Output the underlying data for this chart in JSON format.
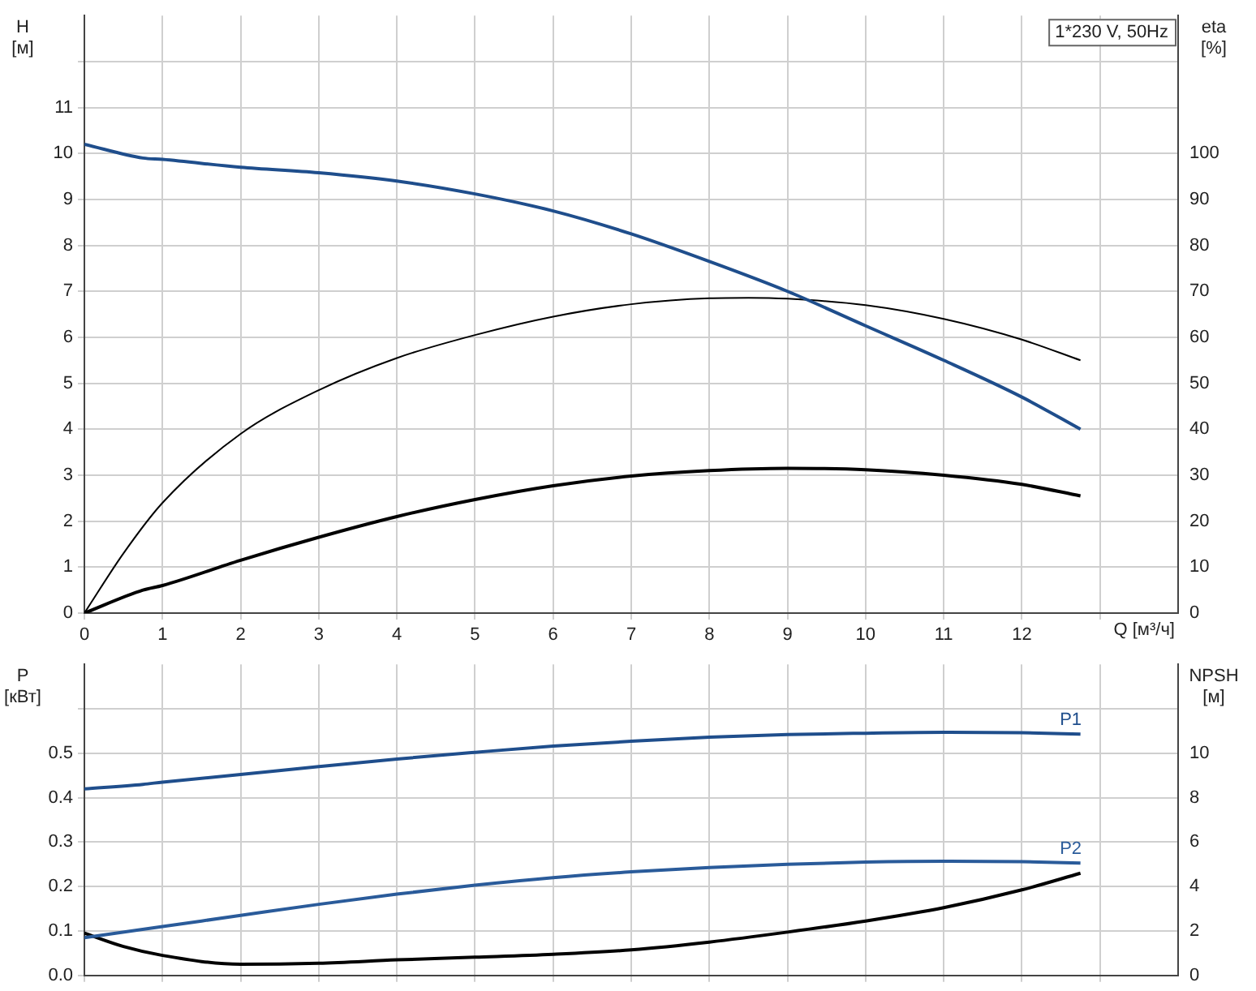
{
  "chart_data": [
    {
      "type": "line",
      "ylabel": "H [м]",
      "y2label": "eta [%]",
      "xlabel": "Q [м³/ч]",
      "annotations": [
        "1*230 V, 50Hz"
      ],
      "x": [
        0,
        0.75,
        1,
        2,
        3,
        4,
        5,
        6,
        7,
        8,
        9,
        10,
        11,
        12,
        12.75
      ],
      "series": [
        {
          "color": "#1f4e8c",
          "values": [
            10.2,
            9.9,
            9.87,
            9.7,
            9.58,
            9.4,
            9.12,
            8.75,
            8.25,
            7.65,
            7.0,
            6.25,
            5.5,
            4.7,
            4.0
          ]
        },
        {
          "color": "#000000",
          "axis": "y2",
          "x": [
            0,
            0.5,
            1,
            2,
            3,
            4,
            5,
            6,
            7,
            8,
            8.5,
            9,
            10,
            11,
            12,
            12.75
          ],
          "values": [
            0,
            13,
            24,
            39,
            48.5,
            55.5,
            60.5,
            64.5,
            67.2,
            68.5,
            68.6,
            68.4,
            67,
            64,
            59.5,
            55
          ]
        },
        {
          "color": "#000000",
          "axis": "y2",
          "x": [
            0,
            0.75,
            1,
            2,
            3,
            4,
            5,
            6,
            7,
            8,
            9,
            10,
            11,
            12,
            12.75
          ],
          "values": [
            0,
            5,
            6,
            11.5,
            16.5,
            21,
            24.7,
            27.7,
            29.8,
            31,
            31.5,
            31.2,
            30,
            28,
            25.5
          ]
        }
      ],
      "xlim": [
        0,
        14
      ],
      "xticks": [
        0,
        1,
        2,
        3,
        4,
        5,
        6,
        7,
        8,
        9,
        10,
        11,
        12,
        {
          "value": 13,
          "label": null
        }
      ],
      "ylim": [
        0,
        13
      ],
      "yticks": [
        0,
        1,
        2,
        3,
        4,
        5,
        6,
        7,
        8,
        9,
        10,
        11,
        {
          "value": 12,
          "label": null
        }
      ],
      "y2lim": [
        0,
        130
      ],
      "y2ticks": [
        0,
        10,
        20,
        30,
        40,
        50,
        60,
        70,
        80,
        90,
        100
      ],
      "grid": true,
      "legend": false
    },
    {
      "type": "line",
      "ylabel": "P [кВт]",
      "y2label": "NPSH [м]",
      "x": [
        0,
        0.75,
        1,
        2,
        3,
        4,
        5,
        6,
        7,
        8,
        9,
        10,
        11,
        12,
        12.75
      ],
      "series": [
        {
          "name": "P1",
          "color": "#1f4e8c",
          "values": [
            0.42,
            0.43,
            0.435,
            0.452,
            0.47,
            0.487,
            0.502,
            0.516,
            0.527,
            0.536,
            0.542,
            0.545,
            0.547,
            0.546,
            0.543
          ]
        },
        {
          "name": "P2",
          "color": "#2a5b9a",
          "x": [
            0,
            1,
            2,
            3,
            4,
            5,
            6,
            7,
            8,
            9,
            10,
            11,
            12,
            12.75
          ],
          "values": [
            0.085,
            0.11,
            0.135,
            0.16,
            0.183,
            0.203,
            0.22,
            0.233,
            0.243,
            0.25,
            0.255,
            0.257,
            0.256,
            0.253
          ]
        },
        {
          "color": "#000000",
          "axis": "y2",
          "x": [
            0,
            0.5,
            1,
            2,
            3,
            4,
            5,
            6,
            7,
            8,
            9,
            10,
            11,
            12,
            12.75
          ],
          "values": [
            1.9,
            1.3,
            0.9,
            0.5,
            0.55,
            0.7,
            0.82,
            0.95,
            1.15,
            1.5,
            1.95,
            2.45,
            3.05,
            3.85,
            4.6
          ]
        }
      ],
      "xlim": [
        0,
        14
      ],
      "xticks": [
        0,
        1,
        2,
        3,
        4,
        5,
        6,
        7,
        8,
        9,
        10,
        11,
        12,
        {
          "value": 13,
          "label": null
        }
      ],
      "ylim": [
        0,
        0.7
      ],
      "yticks": [
        {
          "value": 0,
          "label": "0.0"
        },
        0.1,
        0.2,
        0.3,
        0.4,
        0.5,
        {
          "value": 0.6,
          "label": null
        }
      ],
      "y2lim": [
        0,
        14
      ],
      "y2ticks": [
        0,
        2,
        4,
        6,
        8,
        10
      ],
      "tick_labels": "y",
      "grid": true,
      "legend": false
    }
  ]
}
